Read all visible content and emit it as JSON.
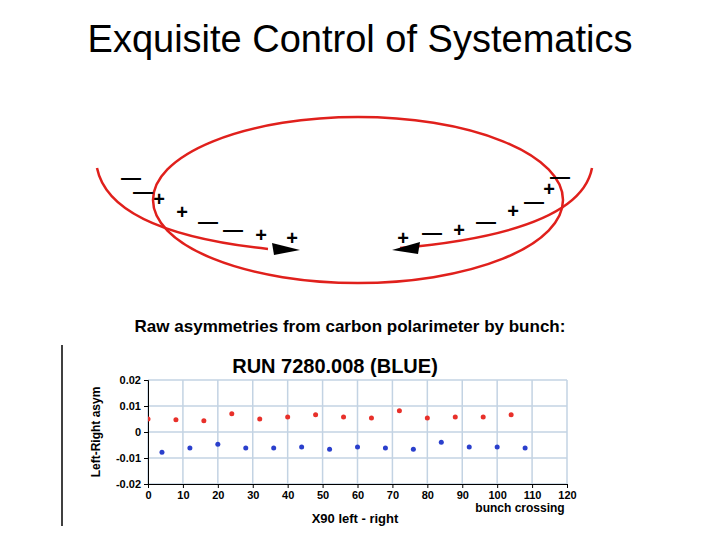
{
  "slide": {
    "title": "Exquisite Control of Systematics",
    "caption": "Raw asymmetries from carbon polarimeter by bunch:"
  },
  "diagram": {
    "signs": [
      "—",
      "—",
      "+",
      "+",
      "—",
      "—",
      "+",
      "+",
      "+",
      "—",
      "+",
      "—",
      "+",
      "—",
      "+",
      "—"
    ]
  },
  "chart_data": {
    "type": "scatter",
    "title": "RUN 7280.008 (BLUE)",
    "xlabel": "X90 left - right",
    "ylabel": "Left-Right asym",
    "annotations": [
      {
        "text": "bunch crossing"
      }
    ],
    "series": [
      {
        "color": "#e8302a",
        "marker": "circle",
        "x": [
          0,
          8,
          16,
          24,
          32,
          40,
          48,
          56,
          64,
          72,
          80,
          88,
          96,
          104
        ],
        "values": [
          0.005,
          0.0047,
          0.0043,
          0.007,
          0.005,
          0.0058,
          0.0066,
          0.0058,
          0.0054,
          0.0082,
          0.0054,
          0.0058,
          0.0058,
          0.0066
        ]
      },
      {
        "color": "#2a3fcc",
        "marker": "circle",
        "x": [
          4,
          12,
          20,
          28,
          36,
          44,
          52,
          60,
          68,
          76,
          84,
          92,
          100,
          108
        ],
        "values": [
          -0.0078,
          -0.0062,
          -0.0047,
          -0.0062,
          -0.0062,
          -0.0058,
          -0.0066,
          -0.0058,
          -0.0062,
          -0.0066,
          -0.0039,
          -0.0058,
          -0.0058,
          -0.0062
        ]
      }
    ],
    "xlim": [
      0,
      120
    ],
    "xticks": [
      0,
      10,
      20,
      30,
      40,
      50,
      60,
      70,
      80,
      90,
      100,
      110,
      120
    ],
    "ylim": [
      -0.02,
      0.02
    ],
    "yticks": [
      -0.02,
      -0.01,
      0,
      0.01,
      0.02
    ],
    "grid": true
  }
}
